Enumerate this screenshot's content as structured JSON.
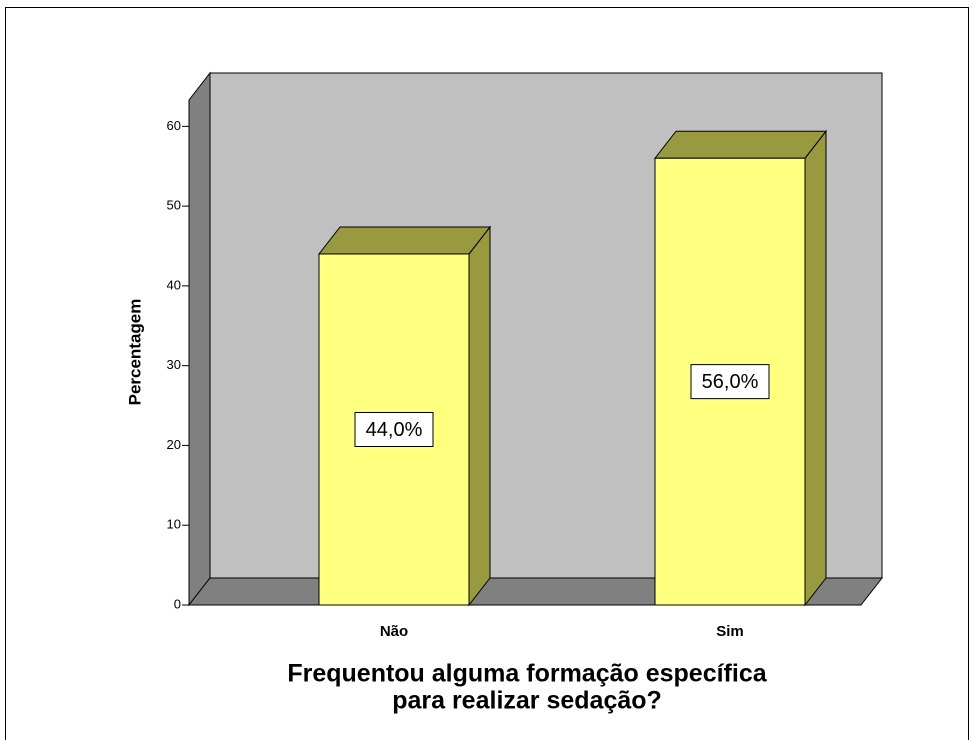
{
  "chart_data": {
    "type": "bar3d",
    "categories": [
      "Não",
      "Sim"
    ],
    "values": [
      44.0,
      56.0
    ],
    "value_labels": [
      "44,0%",
      "56,0%"
    ],
    "y_label": "Percentagem",
    "x_label": [
      "Frequentou alguma formação específica",
      "para realizar sedação?"
    ],
    "ylim": [
      0,
      63.3
    ],
    "yticks": [
      0,
      10,
      20,
      30,
      40,
      50,
      60
    ],
    "color": "#ffff80",
    "shade_color": "#999940",
    "wall_color": "#c0c0c0",
    "floor_color": "#808080"
  }
}
